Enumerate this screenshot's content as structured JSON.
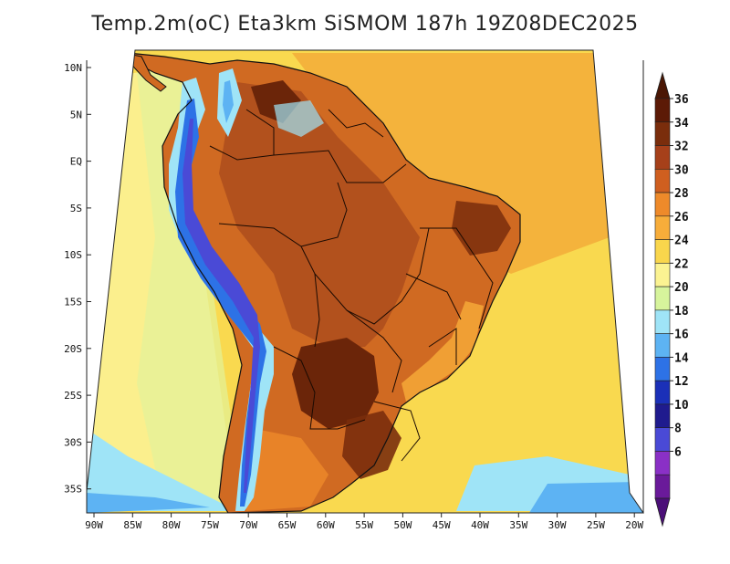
{
  "title": "Temp.2m(oC) Eta3km SiSMOM 187h 19Z08DEC2025",
  "latitude_labels": [
    "10N",
    "5N",
    "EQ",
    "5S",
    "10S",
    "15S",
    "20S",
    "25S",
    "30S",
    "35S"
  ],
  "longitude_labels": [
    "90W",
    "85W",
    "80W",
    "75W",
    "70W",
    "65W",
    "60W",
    "55W",
    "50W",
    "45W",
    "40W",
    "35W",
    "30W",
    "25W",
    "20W"
  ],
  "colorbar": {
    "labels": [
      "36",
      "34",
      "32",
      "30",
      "28",
      "26",
      "24",
      "22",
      "20",
      "18",
      "16",
      "14",
      "12",
      "10",
      "8",
      "6"
    ],
    "colors": [
      "#5c1a06",
      "#7a2d0c",
      "#a6401a",
      "#cf5f1f",
      "#ee8a2a",
      "#f7ad3a",
      "#f9d64c",
      "#fbf392",
      "#d7f49c",
      "#9fe4f7",
      "#5db3f3",
      "#2d72e6",
      "#1b30b8",
      "#1f1b8e",
      "#4a4ad6",
      "#8a30c6",
      "#6a1a9a"
    ],
    "top_color": "#4a1604",
    "bottom_color": "#4b0f78"
  },
  "map": {
    "ocean_color": "#f9d94f",
    "land_color": "#d06a22"
  }
}
